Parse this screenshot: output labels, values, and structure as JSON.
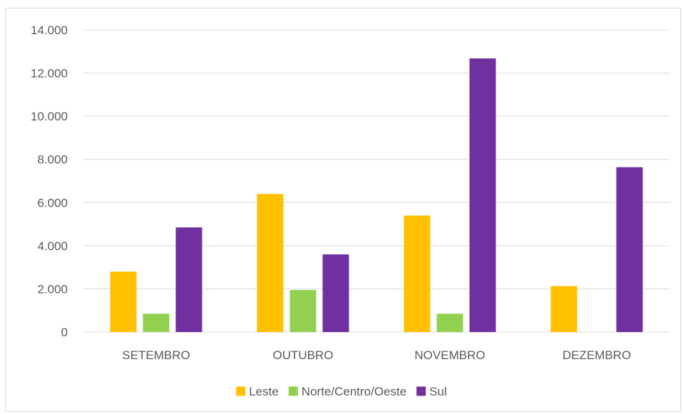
{
  "chart_data": {
    "type": "bar",
    "categories": [
      "SETEMBRO",
      "OUTUBRO",
      "NOVEMBRO",
      "DEZEMBRO"
    ],
    "series": [
      {
        "name": "Leste",
        "color": "#FFC000",
        "values": [
          2800,
          6400,
          5400,
          2130
        ]
      },
      {
        "name": "Norte/Centro/Oeste",
        "color": "#92D050",
        "values": [
          850,
          1950,
          850,
          0
        ]
      },
      {
        "name": "Sul",
        "color": "#7030A0",
        "values": [
          4850,
          3600,
          12680,
          7640
        ]
      }
    ],
    "ylim": [
      0,
      14000
    ],
    "yticks": [
      0,
      2000,
      4000,
      6000,
      8000,
      10000,
      12000,
      14000
    ],
    "ytick_labels": [
      "0",
      "2.000",
      "4.000",
      "6.000",
      "8.000",
      "10.000",
      "12.000",
      "14.000"
    ],
    "grid": true,
    "legend_position": "bottom",
    "title": "",
    "xlabel": "",
    "ylabel": ""
  }
}
